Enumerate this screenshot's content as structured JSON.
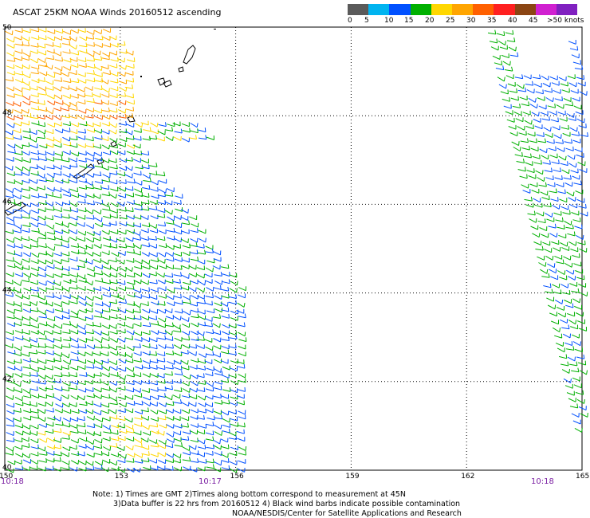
{
  "title": "ASCAT 25KM NOAA Winds 20160512 ascending",
  "legend": {
    "colors": [
      "#5a5a5a",
      "#00b4f0",
      "#0050ff",
      "#00b000",
      "#ffd700",
      "#ffa500",
      "#ff6000",
      "#ff2020",
      "#8b4513",
      "#d020d0",
      "#8020c0"
    ],
    "ticks": [
      "0",
      "5",
      "10",
      "15",
      "20",
      "25",
      "30",
      "35",
      "40",
      "45",
      ">50 knots"
    ]
  },
  "map": {
    "lat_labels": [
      "50",
      "48",
      "46",
      "44",
      "42",
      "40"
    ],
    "lon_labels": [
      "150",
      "153",
      "156",
      "159",
      "162",
      "165"
    ],
    "lat_range": [
      40,
      50
    ],
    "lon_range": [
      150,
      165
    ],
    "grid": "dotted",
    "barb_colors": {
      "5-10": "#0050ff",
      "10-15": "#00b000",
      "15-20": "#00b000",
      "20-25": "#ffd700",
      "25-30": "#ffa500",
      "30-35": "#ff6000"
    }
  },
  "times": [
    "10:18",
    "10:17",
    "10:18"
  ],
  "notes": {
    "line1": "Note: 1) Times are GMT 2)Times along bottom correspond to measurement at 45N",
    "line2": "3)Data buffer is 22 hrs from 20160512 4) Black wind barbs indicate possible contamination",
    "line3": "NOAA/NESDIS/Center for Satellite Applications and Research"
  }
}
